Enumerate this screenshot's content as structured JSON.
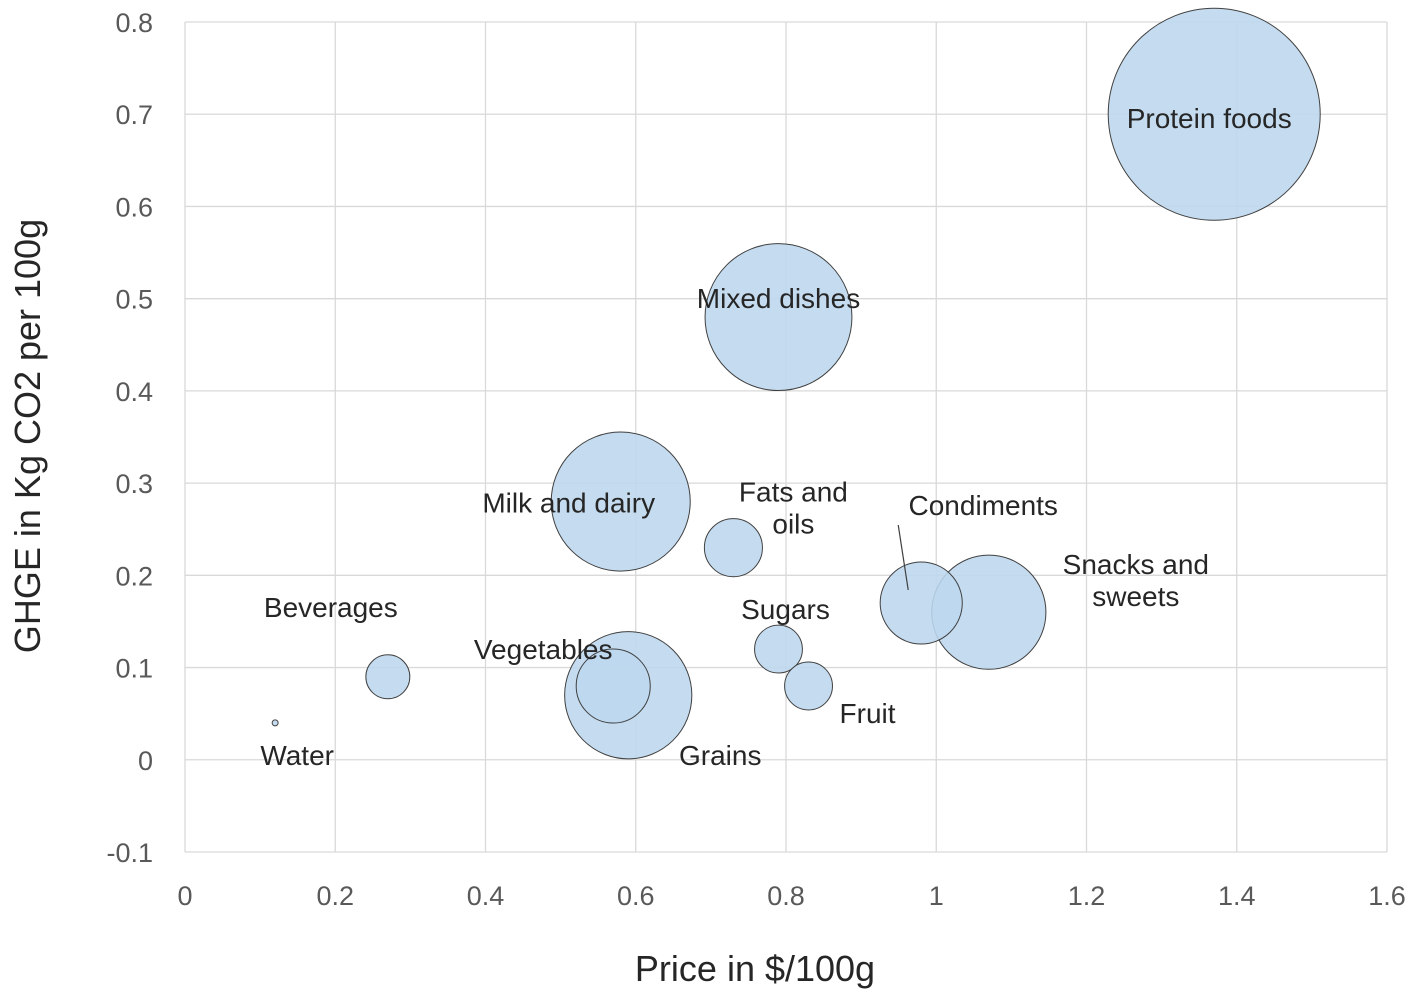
{
  "chart_data": {
    "type": "bubble",
    "title": "",
    "xlabel": "Price in $/100g",
    "ylabel": "GHGE in Kg CO2 per 100g",
    "xlim": [
      0,
      1.6
    ],
    "ylim": [
      -0.1,
      0.8
    ],
    "xticks": [
      0,
      0.2,
      0.4,
      0.6,
      0.8,
      1,
      1.2,
      1.4,
      1.6
    ],
    "yticks": [
      -0.1,
      0,
      0.1,
      0.2,
      0.3,
      0.4,
      0.5,
      0.6,
      0.7,
      0.8
    ],
    "xtick_labels": [
      "0",
      "0.2",
      "0.4",
      "0.6",
      "0.8",
      "1",
      "1.2",
      "1.4",
      "1.6"
    ],
    "ytick_labels": [
      "-0.1",
      "0",
      "0.1",
      "0.2",
      "0.3",
      "0.4",
      "0.5",
      "0.6",
      "0.7",
      "0.8"
    ],
    "grid": true,
    "bubble_color": "#bdd7ee",
    "points": [
      {
        "name": "Water",
        "label": [
          "Water"
        ],
        "x": 0.12,
        "y": 0.04,
        "size": 0.02
      },
      {
        "name": "Beverages",
        "label": [
          "Beverages"
        ],
        "x": 0.27,
        "y": 0.09,
        "size": 4.3
      },
      {
        "name": "Grains",
        "label": [
          "Grains"
        ],
        "x": 0.59,
        "y": 0.07,
        "size": 36
      },
      {
        "name": "Vegetables",
        "label": [
          "Vegetables"
        ],
        "x": 0.57,
        "y": 0.08,
        "size": 12.2
      },
      {
        "name": "Milk and dairy",
        "label": [
          "Milk and dairy"
        ],
        "x": 0.58,
        "y": 0.28,
        "size": 43
      },
      {
        "name": "Fats and oils",
        "label": [
          "Fats and",
          "oils"
        ],
        "x": 0.73,
        "y": 0.23,
        "size": 7.5
      },
      {
        "name": "Sugars",
        "label": [
          "Sugars"
        ],
        "x": 0.79,
        "y": 0.12,
        "size": 5.1
      },
      {
        "name": "Fruit",
        "label": [
          "Fruit"
        ],
        "x": 0.83,
        "y": 0.08,
        "size": 5.1
      },
      {
        "name": "Mixed dishes",
        "label": [
          "Mixed dishes"
        ],
        "x": 0.79,
        "y": 0.48,
        "size": 48
      },
      {
        "name": "Condiments",
        "label": [
          "Condiments"
        ],
        "x": 0.98,
        "y": 0.17,
        "size": 15
      },
      {
        "name": "Snacks and sweets",
        "label": [
          "Snacks and",
          "sweets"
        ],
        "x": 1.07,
        "y": 0.16,
        "size": 29
      },
      {
        "name": "Protein foods",
        "label": [
          "Protein foods"
        ],
        "x": 1.37,
        "y": 0.7,
        "size": 100
      }
    ]
  }
}
